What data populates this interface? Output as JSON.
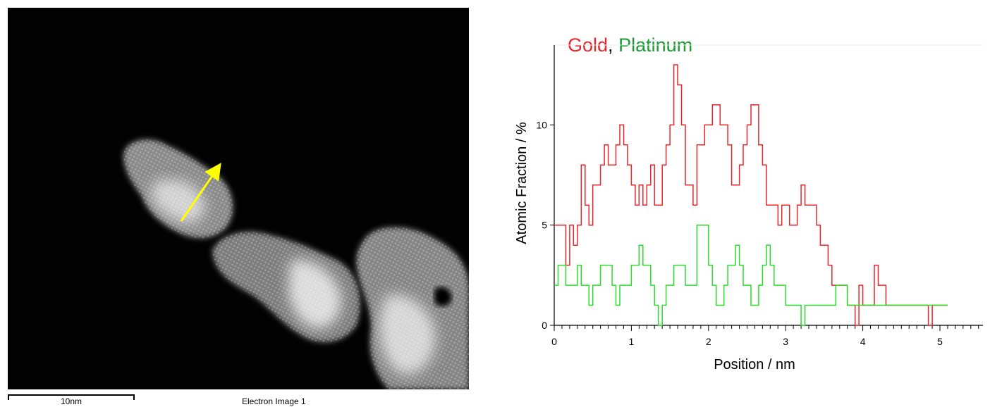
{
  "image_panel": {
    "scale_label": "10nm",
    "caption": "Electron Image 1",
    "arrow_color": "#ffff00"
  },
  "chart_data": {
    "type": "line",
    "step": true,
    "x_label": "Position  / nm",
    "y_label": "Atomic  Fraction  / %",
    "xlim": [
      0,
      5.6
    ],
    "ylim": [
      0,
      13
    ],
    "x_ticks": [
      0,
      1,
      2,
      3,
      4,
      5
    ],
    "y_ticks": [
      0,
      5,
      10
    ],
    "grid": false,
    "legend": [
      {
        "label": "Gold",
        "color": "#e8262a"
      },
      {
        "label": ", ",
        "color": "#000000"
      },
      {
        "label": "Platinum",
        "color": "#1a9a30"
      }
    ],
    "x": [
      0.0,
      0.05,
      0.1,
      0.15,
      0.2,
      0.25,
      0.3,
      0.35,
      0.4,
      0.45,
      0.5,
      0.55,
      0.6,
      0.65,
      0.7,
      0.75,
      0.8,
      0.85,
      0.9,
      0.95,
      1.0,
      1.05,
      1.1,
      1.15,
      1.2,
      1.25,
      1.3,
      1.35,
      1.4,
      1.45,
      1.5,
      1.55,
      1.6,
      1.65,
      1.7,
      1.75,
      1.8,
      1.85,
      1.9,
      1.95,
      2.0,
      2.05,
      2.1,
      2.15,
      2.2,
      2.25,
      2.3,
      2.35,
      2.4,
      2.45,
      2.5,
      2.55,
      2.6,
      2.65,
      2.7,
      2.75,
      2.8,
      2.85,
      2.9,
      2.95,
      3.0,
      3.05,
      3.1,
      3.15,
      3.2,
      3.25,
      3.3,
      3.35,
      3.4,
      3.45,
      3.5,
      3.55,
      3.6,
      3.65,
      3.7,
      3.75,
      3.8,
      3.85,
      3.9,
      3.95,
      4.0,
      4.05,
      4.1,
      4.15,
      4.2,
      4.25,
      4.3,
      4.35,
      4.4,
      4.45,
      4.5,
      4.55,
      4.6,
      4.65,
      4.7,
      4.75,
      4.8,
      4.85,
      4.9,
      4.95,
      5.0,
      5.05
    ],
    "series": [
      {
        "name": "Gold",
        "color": "#e8262a",
        "values": [
          5,
          5,
          5,
          3,
          5,
          4,
          5,
          8,
          6,
          5,
          7,
          7,
          8,
          9,
          8,
          8,
          9,
          10,
          9,
          8,
          7,
          6,
          7,
          6,
          7,
          8,
          6,
          6,
          8,
          9,
          10,
          13,
          12,
          10,
          7,
          7,
          6,
          9,
          9,
          10,
          10,
          11,
          11,
          10,
          10,
          9,
          7,
          7,
          8,
          9,
          10,
          11,
          11,
          9,
          8,
          6,
          6,
          6,
          5,
          6,
          6,
          5,
          5,
          6,
          7,
          6,
          6,
          6,
          5,
          4,
          4,
          3,
          2,
          2,
          2,
          2,
          1,
          1,
          0,
          2,
          1,
          1,
          1,
          3,
          2,
          2,
          1,
          1,
          1,
          1,
          1,
          1,
          1,
          1,
          1,
          1,
          1,
          0,
          1,
          1,
          1,
          1
        ]
      },
      {
        "name": "Platinum",
        "color": "#2adc2a",
        "values": [
          2,
          3,
          3,
          2,
          2,
          2,
          3,
          2,
          2,
          1,
          2,
          2,
          3,
          3,
          3,
          2,
          1,
          2,
          2,
          2,
          3,
          3,
          4,
          3,
          3,
          2,
          1,
          0,
          1,
          2,
          2,
          3,
          3,
          3,
          2,
          2,
          2,
          5,
          5,
          5,
          3,
          2,
          1,
          1,
          2,
          3,
          3,
          4,
          3,
          2,
          2,
          1,
          1,
          2,
          3,
          4,
          3,
          2,
          2,
          2,
          1,
          1,
          1,
          1,
          0,
          1,
          1,
          1,
          1,
          1,
          1,
          1,
          1,
          2,
          2,
          2,
          1,
          1,
          1,
          1,
          1,
          1,
          1,
          1,
          1,
          1,
          1,
          1,
          1,
          1,
          1,
          1,
          1,
          1,
          1,
          1,
          1,
          1,
          1,
          1,
          1,
          1
        ]
      }
    ]
  }
}
